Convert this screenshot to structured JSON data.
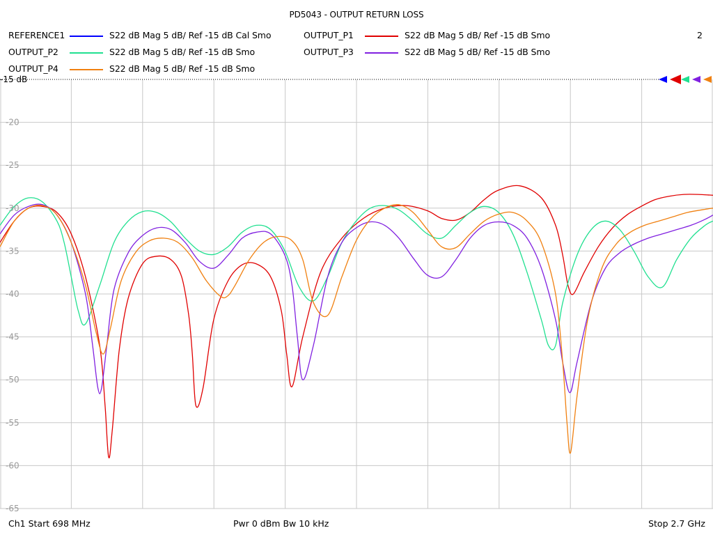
{
  "title": "PD5043 - OUTPUT RETURN LOSS",
  "legend": [
    {
      "name": "REFERENCE1",
      "color": "#0000ff",
      "desc": "S22  dB Mag  5 dB/ Ref -15 dB  Cal Smo"
    },
    {
      "name": "OUTPUT_P1",
      "color": "#e00000",
      "desc": "S22  dB Mag  5 dB/ Ref -15 dB  Smo"
    },
    {
      "name": "OUTPUT_P2",
      "color": "#20e090",
      "desc": "S22  dB Mag  5 dB/ Ref -15 dB  Smo"
    },
    {
      "name": "OUTPUT_P3",
      "color": "#8020e0",
      "desc": "S22  dB Mag  5 dB/ Ref -15 dB  Smo"
    },
    {
      "name": "OUTPUT_P4",
      "color": "#f08010",
      "desc": "S22  dB Mag  5 dB/ Ref -15 dB  Smo"
    }
  ],
  "legend_count": "2",
  "footer": {
    "start": "Ch1  Start  698 MHz",
    "power": "Pwr  0 dBm  Bw  10 kHz",
    "stop": "Stop  2.7 GHz"
  },
  "chart_data": {
    "type": "line",
    "title": "PD5043 - OUTPUT RETURN LOSS",
    "xlabel": "",
    "ylabel": "",
    "x_unit": "MHz",
    "xlim": [
      698,
      2700
    ],
    "ylim": [
      -65,
      -15
    ],
    "y_ticks": [
      -15,
      -20,
      -25,
      -30,
      -35,
      -40,
      -45,
      -50,
      -55,
      -60,
      -65
    ],
    "y_tick_labels": [
      "-15 dB",
      "-20",
      "-25",
      "-30",
      "-35",
      "-40",
      "-45",
      "-50",
      "-55",
      "-60",
      "-65"
    ],
    "x_gridlines": 10,
    "grid": true,
    "reference_level": -15,
    "series": [
      {
        "name": "OUTPUT_P1",
        "color": "#e00000",
        "x": [
          698,
          738,
          778,
          818,
          858,
          898,
          938,
          978,
          993,
          1003,
          1013,
          1033,
          1058,
          1098,
          1138,
          1178,
          1208,
          1228,
          1238,
          1248,
          1268,
          1298,
          1338,
          1378,
          1418,
          1458,
          1488,
          1503,
          1518,
          1548,
          1598,
          1658,
          1718,
          1778,
          1838,
          1898,
          1938,
          1978,
          2018,
          2058,
          2098,
          2158,
          2218,
          2258,
          2278,
          2293,
          2308,
          2338,
          2378,
          2418,
          2458,
          2498,
          2538,
          2578,
          2618,
          2658,
          2700
        ],
        "y": [
          -34.0,
          -31.5,
          -30.0,
          -29.8,
          -30.5,
          -33.0,
          -38.0,
          -46.0,
          -53.0,
          -59.0,
          -56.0,
          -46.5,
          -40.5,
          -36.5,
          -35.6,
          -36.0,
          -38.0,
          -42.5,
          -47.0,
          -53.0,
          -51.0,
          -43.0,
          -38.5,
          -36.6,
          -36.5,
          -38.0,
          -42.0,
          -47.0,
          -50.8,
          -45.0,
          -37.5,
          -33.5,
          -31.2,
          -30.0,
          -29.7,
          -30.3,
          -31.2,
          -31.4,
          -30.5,
          -29.0,
          -27.9,
          -27.4,
          -28.8,
          -32.0,
          -35.5,
          -39.0,
          -40.0,
          -37.5,
          -34.5,
          -32.3,
          -30.8,
          -29.8,
          -29.0,
          -28.6,
          -28.4,
          -28.4,
          -28.5
        ]
      },
      {
        "name": "OUTPUT_P2",
        "color": "#20e090",
        "x": [
          698,
          738,
          778,
          818,
          858,
          878,
          898,
          918,
          938,
          978,
          1018,
          1058,
          1098,
          1138,
          1178,
          1218,
          1258,
          1298,
          1338,
          1378,
          1418,
          1458,
          1498,
          1538,
          1578,
          1618,
          1658,
          1698,
          1738,
          1778,
          1818,
          1858,
          1898,
          1938,
          1978,
          2018,
          2058,
          2098,
          2138,
          2178,
          2218,
          2238,
          2258,
          2278,
          2318,
          2358,
          2398,
          2438,
          2478,
          2518,
          2558,
          2598,
          2638,
          2678,
          2700
        ],
        "y": [
          -32.0,
          -29.8,
          -28.8,
          -29.3,
          -31.5,
          -34.0,
          -38.0,
          -42.0,
          -43.5,
          -39.0,
          -34.0,
          -31.5,
          -30.4,
          -30.5,
          -31.6,
          -33.5,
          -35.0,
          -35.4,
          -34.5,
          -32.8,
          -32.0,
          -32.5,
          -35.0,
          -39.2,
          -40.8,
          -38.0,
          -34.0,
          -31.5,
          -30.0,
          -29.7,
          -30.2,
          -31.5,
          -33.0,
          -33.5,
          -32.0,
          -30.5,
          -29.8,
          -30.5,
          -33.0,
          -37.5,
          -43.0,
          -46.0,
          -46.0,
          -41.0,
          -35.5,
          -32.5,
          -31.5,
          -32.5,
          -35.0,
          -38.0,
          -39.2,
          -36.0,
          -33.5,
          -32.0,
          -31.5
        ]
      },
      {
        "name": "OUTPUT_P3",
        "color": "#8020e0",
        "x": [
          698,
          738,
          778,
          818,
          858,
          898,
          938,
          958,
          973,
          983,
          998,
          1018,
          1058,
          1098,
          1138,
          1178,
          1218,
          1258,
          1298,
          1338,
          1378,
          1418,
          1458,
          1498,
          1518,
          1533,
          1548,
          1578,
          1618,
          1658,
          1698,
          1738,
          1778,
          1818,
          1858,
          1898,
          1938,
          1978,
          2018,
          2058,
          2098,
          2138,
          2178,
          2218,
          2258,
          2278,
          2298,
          2318,
          2358,
          2398,
          2438,
          2478,
          2518,
          2558,
          2598,
          2638,
          2678,
          2700
        ],
        "y": [
          -33.0,
          -30.8,
          -29.8,
          -29.6,
          -30.8,
          -34.0,
          -40.0,
          -46.0,
          -51.0,
          -51.0,
          -46.0,
          -39.5,
          -35.2,
          -33.2,
          -32.3,
          -32.5,
          -34.0,
          -36.2,
          -37.0,
          -35.5,
          -33.5,
          -32.8,
          -33.0,
          -35.5,
          -39.0,
          -45.0,
          -50.0,
          -46.0,
          -38.0,
          -34.0,
          -32.3,
          -31.6,
          -32.0,
          -33.5,
          -35.8,
          -37.8,
          -38.0,
          -36.0,
          -33.5,
          -32.0,
          -31.6,
          -32.0,
          -33.5,
          -37.0,
          -43.0,
          -48.0,
          -51.5,
          -48.0,
          -41.0,
          -37.0,
          -35.2,
          -34.2,
          -33.5,
          -33.0,
          -32.5,
          -32.0,
          -31.3,
          -30.8
        ]
      },
      {
        "name": "OUTPUT_P4",
        "color": "#f08010",
        "x": [
          698,
          738,
          778,
          818,
          858,
          898,
          938,
          968,
          988,
          1008,
          1038,
          1078,
          1118,
          1158,
          1198,
          1238,
          1278,
          1318,
          1338,
          1358,
          1398,
          1438,
          1478,
          1518,
          1548,
          1578,
          1618,
          1658,
          1698,
          1738,
          1778,
          1818,
          1858,
          1898,
          1938,
          1978,
          2018,
          2058,
          2098,
          2138,
          2178,
          2218,
          2258,
          2278,
          2290,
          2300,
          2318,
          2348,
          2388,
          2428,
          2468,
          2508,
          2548,
          2588,
          2628,
          2668,
          2700
        ],
        "y": [
          -34.5,
          -31.5,
          -30.0,
          -29.7,
          -30.8,
          -34.0,
          -39.0,
          -44.5,
          -47.0,
          -44.0,
          -38.5,
          -35.2,
          -33.8,
          -33.5,
          -34.0,
          -35.8,
          -38.5,
          -40.3,
          -40.2,
          -39.0,
          -36.0,
          -34.0,
          -33.3,
          -33.8,
          -36.0,
          -41.0,
          -42.5,
          -38.0,
          -33.8,
          -31.3,
          -30.0,
          -29.6,
          -30.5,
          -32.5,
          -34.5,
          -34.6,
          -33.0,
          -31.5,
          -30.7,
          -30.5,
          -31.5,
          -34.0,
          -40.0,
          -48.0,
          -55.0,
          -58.5,
          -52.0,
          -43.0,
          -37.0,
          -34.2,
          -32.8,
          -32.0,
          -31.5,
          -31.0,
          -30.5,
          -30.2,
          -30.0
        ]
      }
    ]
  }
}
